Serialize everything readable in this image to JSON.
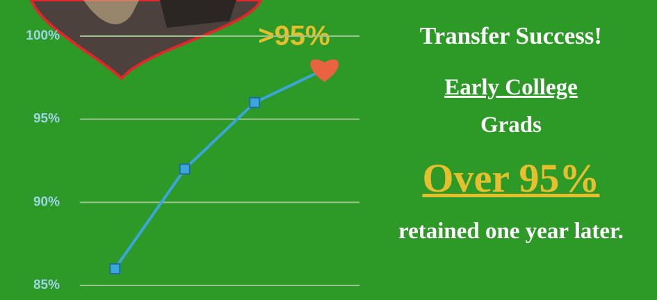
{
  "chart_data": {
    "type": "line",
    "categories": [
      null,
      null,
      null,
      null
    ],
    "series": [
      {
        "values": [
          86,
          92,
          96,
          98
        ],
        "color": "#3aa6db"
      }
    ],
    "ylim": [
      85,
      100
    ],
    "yticks": [
      {
        "value": 85,
        "label": "85%"
      },
      {
        "value": 90,
        "label": "90%"
      },
      {
        "value": 95,
        "label": "95%"
      },
      {
        "value": 100,
        "label": "100%"
      }
    ],
    "grid": true,
    "highlight_color": "#ea6340",
    "annotation": ">95%"
  },
  "panel": {
    "heading": "Transfer Success!",
    "line1": "Early College",
    "line2": "Grads",
    "highlight": "Over 95%",
    "body": "retained one year later."
  }
}
